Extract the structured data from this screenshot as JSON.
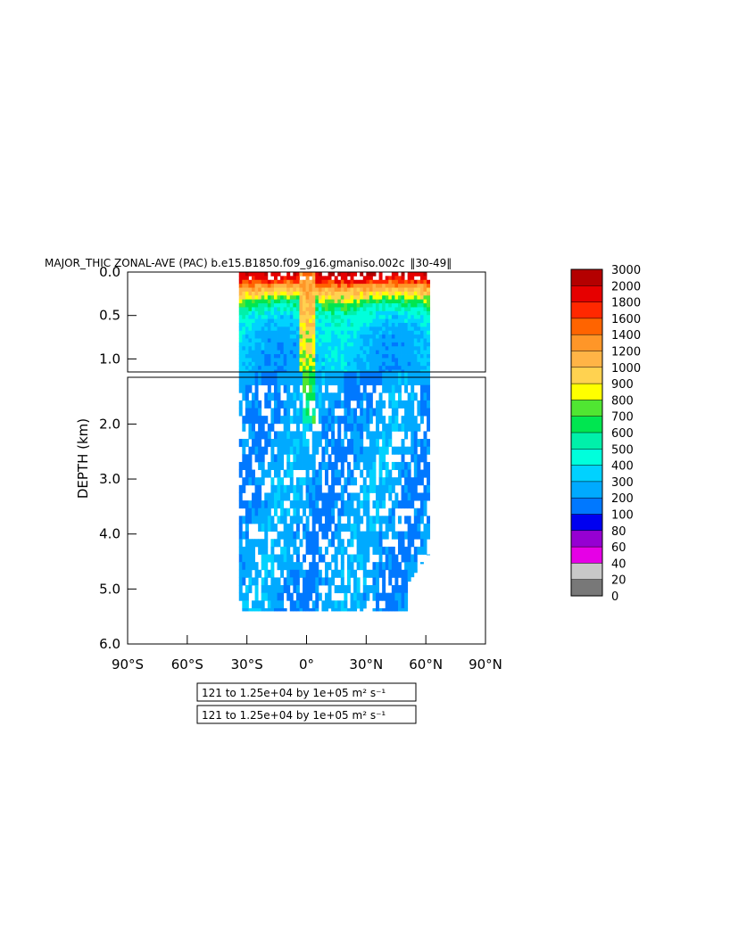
{
  "chart_data": {
    "type": "heatmap",
    "title": "MAJOR_THIC ZONAL-AVE (PAC) b.e15.B1850.f09_g16.gmaniso.002c",
    "title_years": "30-49",
    "ylabel": "DEPTH (km)",
    "xlabel": "",
    "x_ticks": [
      "90°S",
      "60°S",
      "30°S",
      "0°",
      "30°N",
      "60°N",
      "90°N"
    ],
    "xlim": [
      -90,
      90
    ],
    "upper_panel": {
      "ylim": [
        0.0,
        1.15
      ],
      "y_ticks": [
        "0.0",
        "0.5",
        "1.0"
      ],
      "y_values": [
        0.0,
        0.5,
        1.0
      ]
    },
    "lower_panel": {
      "ylim": [
        1.15,
        6.0
      ],
      "y_ticks": [
        "2.0",
        "3.0",
        "4.0",
        "5.0",
        "6.0"
      ],
      "y_values": [
        2.0,
        3.0,
        4.0,
        5.0,
        6.0
      ]
    },
    "data_extent": {
      "lat_min": -34,
      "lat_max": 62,
      "max_depth_km": 5.4
    },
    "colorbar": {
      "levels": [
        "3000",
        "2000",
        "1800",
        "1600",
        "1400",
        "1200",
        "1000",
        "900",
        "800",
        "700",
        "600",
        "500",
        "400",
        "300",
        "200",
        "100",
        "80",
        "60",
        "40",
        "20",
        "0"
      ],
      "colors": [
        "#b40000",
        "#e60000",
        "#ff2800",
        "#ff6400",
        "#ff9628",
        "#ffb446",
        "#ffd250",
        "#ffff00",
        "#50e632",
        "#00e650",
        "#00f0aa",
        "#00ffdc",
        "#00d2ff",
        "#00aaff",
        "#0078ff",
        "#0000f0",
        "#9600d2",
        "#e600e6",
        "#c8c8c8",
        "#787878"
      ]
    },
    "contour_notes": [
      "121 to 1.25e+04 by 1e+05 m² s⁻¹",
      "121 to 1.25e+04 by 1e+05 m² s⁻¹"
    ]
  }
}
